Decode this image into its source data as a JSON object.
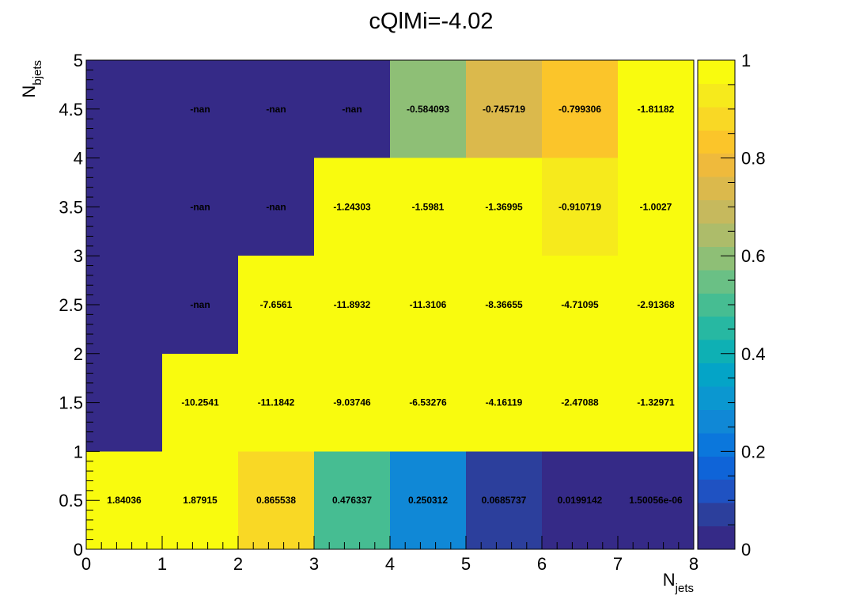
{
  "chart_data": {
    "type": "heatmap",
    "title": "cQlMi=-4.02",
    "xlabel": {
      "main": "N",
      "sub": "jets"
    },
    "ylabel": {
      "main": "N",
      "sub": "bjets"
    },
    "xlim": [
      0,
      8
    ],
    "ylim": [
      0,
      5
    ],
    "x_bins": [
      0,
      1,
      2,
      3,
      4,
      5,
      6,
      7,
      8
    ],
    "y_bins": [
      0,
      1,
      2,
      3,
      4,
      5
    ],
    "x_ticks": [
      "0",
      "1",
      "2",
      "3",
      "4",
      "5",
      "6",
      "7",
      "8"
    ],
    "y_ticks": [
      "0",
      "0.5",
      "1",
      "1.5",
      "2",
      "2.5",
      "3",
      "3.5",
      "4",
      "4.5",
      "5"
    ],
    "colorbar": {
      "range": [
        0,
        1
      ],
      "ticks": [
        "0",
        "0.2",
        "0.4",
        "0.6",
        "0.8",
        "1"
      ],
      "palette": [
        "#352a87",
        "#2c3f9c",
        "#1f52c2",
        "#0f64d8",
        "#0b77dc",
        "#1088d6",
        "#0b97d0",
        "#04a4c7",
        "#0eb0b4",
        "#27b8a2",
        "#46bd92",
        "#6ac085",
        "#8ebf76",
        "#adbc6a",
        "#c6b95d",
        "#dbb94c",
        "#efba3c",
        "#fbc52a",
        "#f9d825",
        "#f6ea1c",
        "#f9fb0e"
      ]
    },
    "cells": [
      {
        "x": 0,
        "y": 0,
        "label": "1.84036",
        "color_value": 1
      },
      {
        "x": 1,
        "y": 0,
        "label": "1.87915",
        "color_value": 1
      },
      {
        "x": 2,
        "y": 0,
        "label": "0.865538",
        "color_value": 0.87
      },
      {
        "x": 3,
        "y": 0,
        "label": "0.476337",
        "color_value": 0.48
      },
      {
        "x": 4,
        "y": 0,
        "label": "0.250312",
        "color_value": 0.25
      },
      {
        "x": 5,
        "y": 0,
        "label": "0.0685737",
        "color_value": 0.07
      },
      {
        "x": 6,
        "y": 0,
        "label": "0.0199142",
        "color_value": 0.02
      },
      {
        "x": 7,
        "y": 0,
        "label": "1.50056e-06",
        "color_value": 0
      },
      {
        "x": 0,
        "y": 1,
        "label": "",
        "color_value": 0.02
      },
      {
        "x": 1,
        "y": 1,
        "label": "-10.2541",
        "color_value": 1
      },
      {
        "x": 2,
        "y": 1,
        "label": "-11.1842",
        "color_value": 1
      },
      {
        "x": 3,
        "y": 1,
        "label": "-9.03746",
        "color_value": 1
      },
      {
        "x": 4,
        "y": 1,
        "label": "-6.53276",
        "color_value": 1
      },
      {
        "x": 5,
        "y": 1,
        "label": "-4.16119",
        "color_value": 1
      },
      {
        "x": 6,
        "y": 1,
        "label": "-2.47088",
        "color_value": 1
      },
      {
        "x": 7,
        "y": 1,
        "label": "-1.32971",
        "color_value": 1
      },
      {
        "x": 0,
        "y": 2,
        "label": "",
        "color_value": 0.02
      },
      {
        "x": 1,
        "y": 2,
        "label": "-nan",
        "color_value": 0
      },
      {
        "x": 2,
        "y": 2,
        "label": "-7.6561",
        "color_value": 1
      },
      {
        "x": 3,
        "y": 2,
        "label": "-11.8932",
        "color_value": 1
      },
      {
        "x": 4,
        "y": 2,
        "label": "-11.3106",
        "color_value": 1
      },
      {
        "x": 5,
        "y": 2,
        "label": "-8.36655",
        "color_value": 1
      },
      {
        "x": 6,
        "y": 2,
        "label": "-4.71095",
        "color_value": 1
      },
      {
        "x": 7,
        "y": 2,
        "label": "-2.91368",
        "color_value": 1
      },
      {
        "x": 0,
        "y": 3,
        "label": "",
        "color_value": 0.02
      },
      {
        "x": 1,
        "y": 3,
        "label": "-nan",
        "color_value": 0
      },
      {
        "x": 2,
        "y": 3,
        "label": "-nan",
        "color_value": 0
      },
      {
        "x": 3,
        "y": 3,
        "label": "-1.24303",
        "color_value": 1
      },
      {
        "x": 4,
        "y": 3,
        "label": "-1.5981",
        "color_value": 1
      },
      {
        "x": 5,
        "y": 3,
        "label": "-1.36995",
        "color_value": 1
      },
      {
        "x": 6,
        "y": 3,
        "label": "-0.910719",
        "color_value": 0.92
      },
      {
        "x": 7,
        "y": 3,
        "label": "-1.0027",
        "color_value": 1
      },
      {
        "x": 0,
        "y": 4,
        "label": "",
        "color_value": 0.02
      },
      {
        "x": 1,
        "y": 4,
        "label": "-nan",
        "color_value": 0
      },
      {
        "x": 2,
        "y": 4,
        "label": "-nan",
        "color_value": 0
      },
      {
        "x": 3,
        "y": 4,
        "label": "-nan",
        "color_value": 0
      },
      {
        "x": 4,
        "y": 4,
        "label": "-0.584093",
        "color_value": 0.6
      },
      {
        "x": 5,
        "y": 4,
        "label": "-0.745719",
        "color_value": 0.75
      },
      {
        "x": 6,
        "y": 4,
        "label": "-0.799306",
        "color_value": 0.84
      },
      {
        "x": 7,
        "y": 4,
        "label": "-1.81182",
        "color_value": 1
      }
    ]
  }
}
